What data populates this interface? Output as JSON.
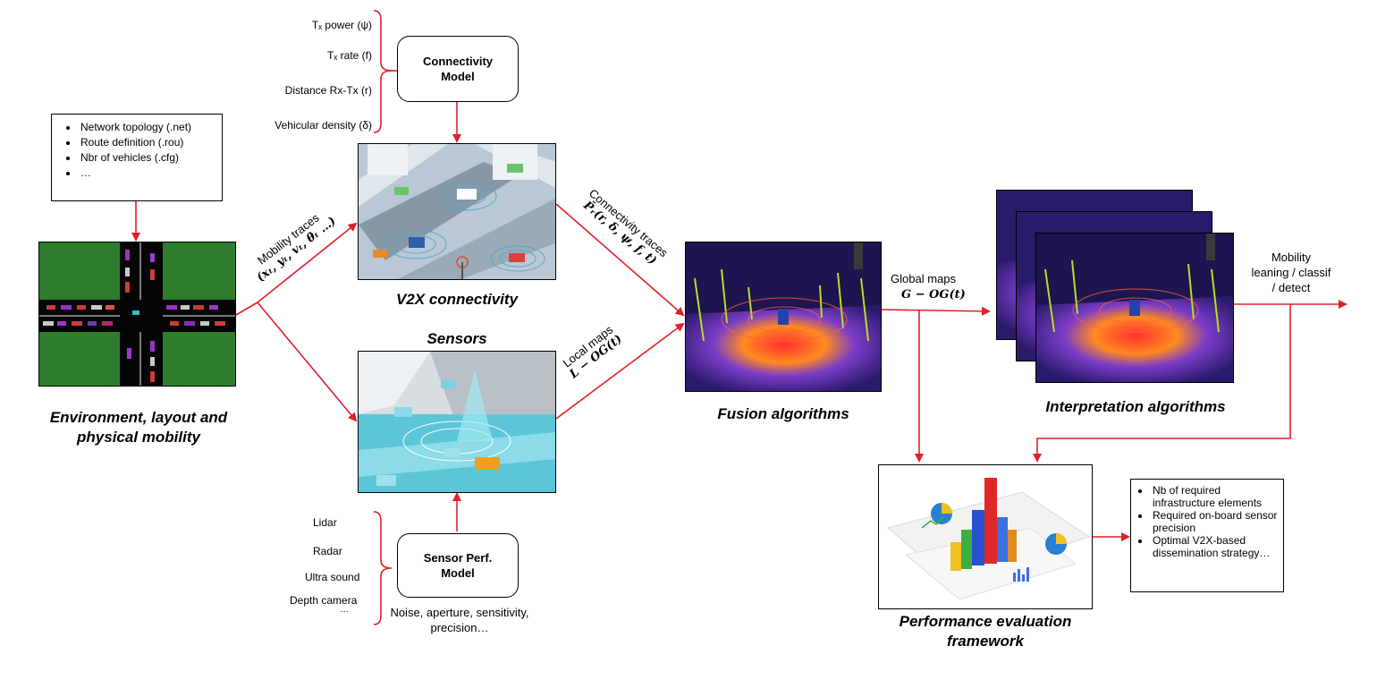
{
  "input_list": [
    "Network topology (.net)",
    "Route definition (.rou)",
    "Nbr of vehicles (.cfg)",
    "…"
  ],
  "environment_caption": [
    "Environment, layout and",
    "physical mobility"
  ],
  "connectivity_params": [
    "Tₓ power (ψ)",
    "Tₓ rate (f)",
    "Distance Rx-Tx (r)",
    "Vehicular density (δ)"
  ],
  "connectivity_model": [
    "Connectivity",
    "Model"
  ],
  "v2x_caption": "V2X connectivity",
  "sensors_caption": "Sensors",
  "mobility_traces": {
    "label": "Mobility traces",
    "formula": "(xₜ, yₜ, vₜ, θₜ …)"
  },
  "connectivity_traces": {
    "label": "Connectivity traces",
    "formula": "P̄ᵣ(r, δ, ψ, f, t)"
  },
  "local_maps": {
    "label": "Local maps",
    "formula": "L − OG(t)"
  },
  "fusion_caption": "Fusion algorithms",
  "global_maps": {
    "label": "Global maps",
    "formula": "G − OG(t)"
  },
  "interpretation_caption": "Interpretation algorithms",
  "mobility_output": [
    "Mobility",
    "leaning  / classif",
    "/ detect"
  ],
  "sensor_list": [
    "Lidar",
    "Radar",
    "Ultra sound",
    "Depth camera",
    "…"
  ],
  "sensor_model": [
    "Sensor Perf.",
    "Model"
  ],
  "sensor_noise": [
    "Noise, aperture, sensitivity,",
    "precision…"
  ],
  "performance_caption": [
    "Performance evaluation",
    "framework"
  ],
  "output_list": [
    "Nb of required infrastructure elements",
    "Required on-board sensor precision",
    "Optimal V2X-based dissemination strategy…"
  ],
  "colors": {
    "arrow": "#e0202a",
    "grass": "#2e7d2e",
    "road": "#050505"
  }
}
